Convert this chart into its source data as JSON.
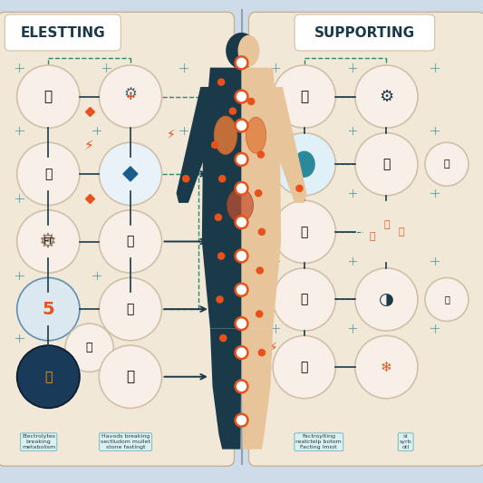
{
  "bg_color": "#cddce8",
  "panel_left_color": "#f2e8d8",
  "panel_right_color": "#f2e8d8",
  "title_left": "ELESTTING",
  "title_right": "SUPPORTING",
  "title_color": "#1a3a4a",
  "title_bg": "#ffffff",
  "title_fontsize": 11,
  "body_dark": "#1a3a4a",
  "body_light": "#e8c49a",
  "orange": "#e8521a",
  "blue": "#1a5c8a",
  "teal": "#2a8a9a",
  "circle_bg": "#f8f0e8",
  "circle_bg2": "#e8f4f8",
  "circle_edge": "#d0c0a8",
  "connector_color": "#1a3a4a",
  "dashed_color": "#2a8a6a",
  "plus_color": "#2a8a9a",
  "bolt_color": "#e8521a",
  "dot_white": "#ffffff",
  "dot_red": "#e8521a",
  "bottom_text_left1": "Electrolytes\nbreaking\nmetabolism",
  "bottom_text_left2": "Havods breaking\nsectludom mullet\nstone fastingt",
  "bottom_text_right1": "Factroylting\nreatctelp botom\nFacting lmiot",
  "bottom_text_right2": "st\nsyrb\notl"
}
